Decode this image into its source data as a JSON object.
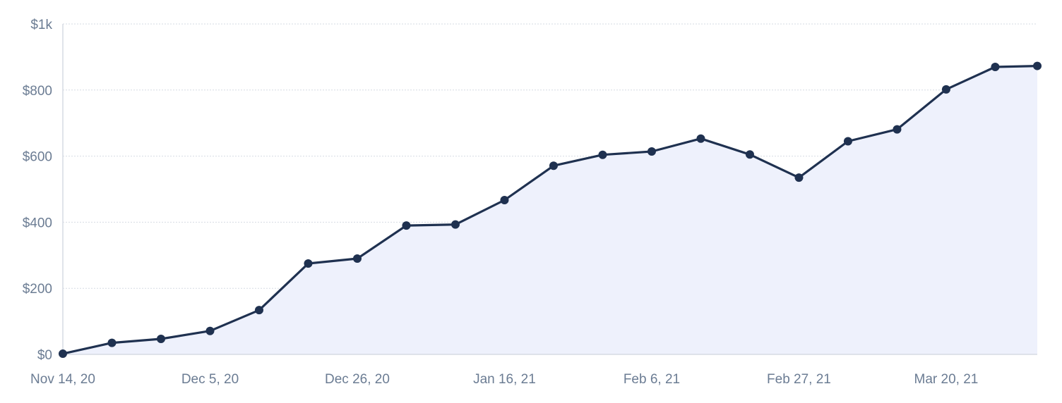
{
  "chart_data": {
    "type": "area",
    "title": "",
    "xlabel": "",
    "ylabel": "",
    "x": [
      "2020-11-14",
      "2020-11-21",
      "2020-11-28",
      "2020-12-05",
      "2020-12-12",
      "2020-12-19",
      "2020-12-26",
      "2021-01-02",
      "2021-01-09",
      "2021-01-16",
      "2021-01-23",
      "2021-01-30",
      "2021-02-06",
      "2021-02-13",
      "2021-02-20",
      "2021-02-27",
      "2021-03-06",
      "2021-03-13",
      "2021-03-20",
      "2021-03-27",
      "2021-04-02"
    ],
    "series": [
      {
        "values": [
          2,
          35,
          47,
          71,
          134,
          275,
          290,
          390,
          393,
          467,
          571,
          604,
          614,
          653,
          605,
          535,
          645,
          681,
          802,
          870,
          873
        ]
      }
    ],
    "ylim": [
      0,
      1000
    ],
    "y_ticks": [
      {
        "value": 0,
        "label": "$0"
      },
      {
        "value": 200,
        "label": "$200"
      },
      {
        "value": 400,
        "label": "$400"
      },
      {
        "value": 600,
        "label": "$600"
      },
      {
        "value": 800,
        "label": "$800"
      },
      {
        "value": 1000,
        "label": "$1k"
      }
    ],
    "x_ticks": [
      {
        "value": "2020-11-14",
        "label": "Nov 14, 20"
      },
      {
        "value": "2020-12-05",
        "label": "Dec 5, 20"
      },
      {
        "value": "2020-12-26",
        "label": "Dec 26, 20"
      },
      {
        "value": "2021-01-16",
        "label": "Jan 16, 21"
      },
      {
        "value": "2021-02-06",
        "label": "Feb 6, 21"
      },
      {
        "value": "2021-02-27",
        "label": "Feb 27, 21"
      },
      {
        "value": "2021-03-20",
        "label": "Mar 20, 21"
      }
    ],
    "grid": true,
    "colors": {
      "line": "#1f3150",
      "fill": "#eef1fc",
      "grid": "#d6dbe3",
      "text": "#6b7c93"
    }
  }
}
